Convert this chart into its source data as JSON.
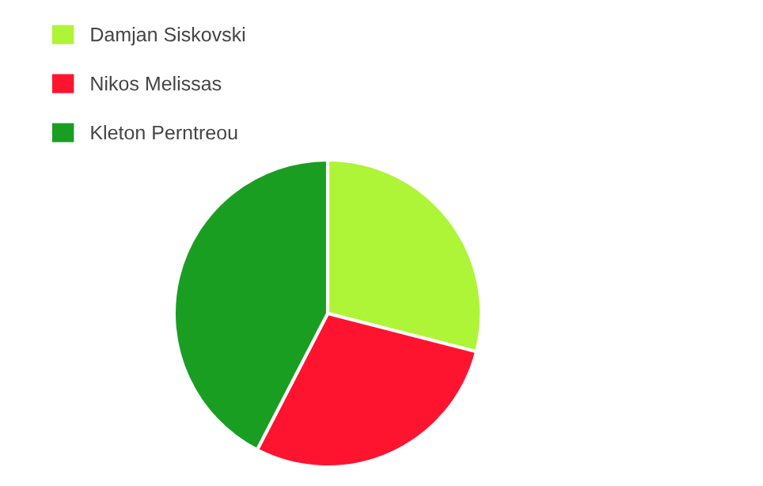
{
  "chart_data": {
    "type": "pie",
    "categories": [
      "Damjan Siskovski",
      "Nikos Melissas",
      "Kleton Perntreou"
    ],
    "values": [
      29.0,
      28.6,
      42.4
    ],
    "colors": [
      "#adf536",
      "#ff1430",
      "#1a9e22"
    ],
    "legend": "top left"
  }
}
